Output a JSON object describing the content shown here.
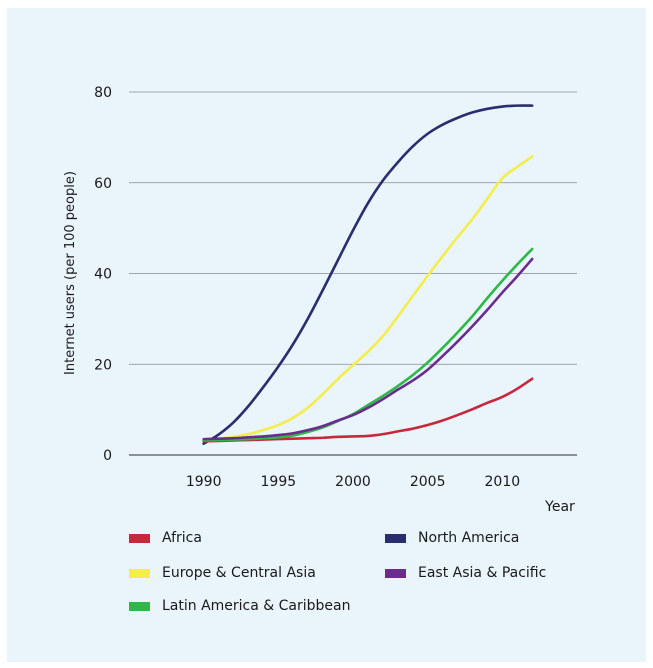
{
  "chart_data": {
    "type": "line",
    "title": "",
    "xlabel": "Year",
    "ylabel": "Internet users (per 100 people)",
    "xlim": [
      1985,
      2015
    ],
    "ylim": [
      0,
      80
    ],
    "xticks": [
      1990,
      1995,
      2000,
      2005,
      2010
    ],
    "yticks": [
      0,
      20,
      40,
      60,
      80
    ],
    "grid": "horizontal",
    "legend_position": "bottom",
    "x": [
      1990,
      1991,
      1992,
      1993,
      1994,
      1995,
      1996,
      1997,
      1998,
      1999,
      2000,
      2001,
      2002,
      2003,
      2004,
      2005,
      2006,
      2007,
      2008,
      2009,
      2010,
      2011,
      2012
    ],
    "series": [
      {
        "name": "Africa",
        "color": "#c8283c",
        "values": [
          3.0,
          3.1,
          3.2,
          3.3,
          3.4,
          3.5,
          3.6,
          3.7,
          3.8,
          4.0,
          4.1,
          4.2,
          4.6,
          5.2,
          5.8,
          6.6,
          7.6,
          8.8,
          10.1,
          11.5,
          12.8,
          14.6,
          16.8
        ]
      },
      {
        "name": "North America",
        "color": "#2a2d6e",
        "values": [
          2.5,
          4.5,
          7.2,
          10.8,
          15.0,
          19.5,
          24.5,
          30.2,
          36.5,
          43.0,
          49.5,
          55.5,
          60.5,
          64.5,
          68.0,
          70.8,
          72.8,
          74.3,
          75.5,
          76.3,
          76.8,
          77.0,
          77.0
        ]
      },
      {
        "name": "Europe & Central Asia",
        "color": "#f4ed4a",
        "values": [
          3.3,
          3.6,
          4.0,
          4.6,
          5.5,
          6.6,
          8.2,
          10.5,
          13.5,
          16.8,
          19.8,
          22.8,
          26.2,
          30.5,
          35.0,
          39.5,
          43.8,
          48.0,
          52.0,
          56.5,
          61.0,
          63.5,
          65.8
        ]
      },
      {
        "name": "East Asia & Pacific",
        "color": "#6a2c8e",
        "values": [
          3.5,
          3.6,
          3.7,
          3.9,
          4.1,
          4.4,
          4.8,
          5.5,
          6.4,
          7.6,
          8.8,
          10.4,
          12.3,
          14.4,
          16.4,
          18.8,
          21.8,
          25.0,
          28.4,
          32.0,
          35.8,
          39.4,
          43.2
        ]
      },
      {
        "name": "Latin America & Caribbean",
        "color": "#2eb84a",
        "values": [
          3.2,
          3.3,
          3.4,
          3.5,
          3.7,
          3.9,
          4.3,
          5.1,
          6.1,
          7.5,
          9.0,
          11.0,
          13.0,
          15.2,
          17.6,
          20.4,
          23.6,
          27.0,
          30.6,
          34.6,
          38.4,
          42.0,
          45.4
        ]
      }
    ],
    "legend_order": [
      "Africa",
      "North America",
      "Europe & Central Asia",
      "East Asia & Pacific",
      "Latin America & Caribbean"
    ]
  }
}
